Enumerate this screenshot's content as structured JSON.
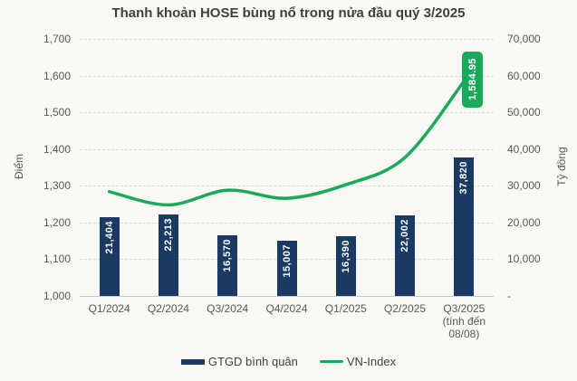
{
  "title": "Thanh khoản HOSE bùng nổ trong nửa đầu quý 3/2025",
  "colors": {
    "background": "#f8f8f5",
    "title_text": "#404040",
    "tick_text": "#595959",
    "bar": "#1a3a64",
    "line": "#1baa5b",
    "bar_label_text": "#ffffff",
    "callout_bg": "#1baa5b",
    "callout_text": "#ffffff",
    "legend_text": "#404040",
    "gridline": "#d9d9d9",
    "axis_line": "#c8c8c8"
  },
  "chart_data": {
    "type": "combo bar+line",
    "categories": [
      [
        "Q1/2024"
      ],
      [
        "Q2/2024"
      ],
      [
        "Q3/2024"
      ],
      [
        "Q4/2024"
      ],
      [
        "Q1/2025"
      ],
      [
        "Q2/2025"
      ],
      [
        "Q3/2025",
        "(tính đến",
        "08/08)"
      ]
    ],
    "series": [
      {
        "name": "GTGD bình quân",
        "type": "bar",
        "axis": "right",
        "values": [
          21404,
          22213,
          16570,
          15007,
          16390,
          22002,
          37820
        ],
        "data_labels": [
          "21,404",
          "22,213",
          "16,570",
          "15,007",
          "16,390",
          "22,002",
          "37,820"
        ]
      },
      {
        "name": "VN-Index",
        "type": "line",
        "axis": "left",
        "values": [
          1284,
          1248,
          1288,
          1266,
          1303,
          1377,
          1584.95
        ],
        "end_label": "1,584.95"
      }
    ],
    "left_axis": {
      "title": "Điểm",
      "min": 1000,
      "max": 1700,
      "ticks": [
        "1,700",
        "1,600",
        "1,500",
        "1,400",
        "1,300",
        "1,200",
        "1,100",
        "1,000"
      ]
    },
    "right_axis": {
      "title": "Tỷ đồng",
      "min": 0,
      "max": 70000,
      "ticks": [
        "70,000",
        "60,000",
        "50,000",
        "40,000",
        "30,000",
        "20,000",
        "10,000",
        "-"
      ]
    },
    "grid": "horizontal-dashed",
    "legend_position": "bottom"
  }
}
